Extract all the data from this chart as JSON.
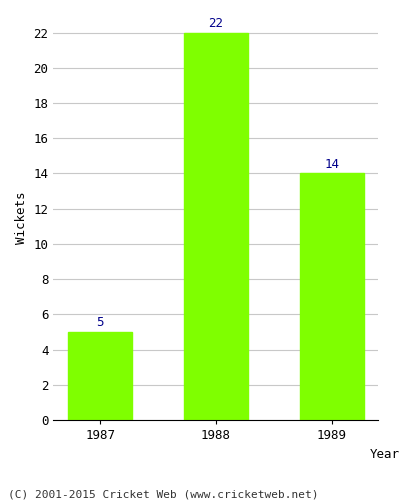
{
  "years": [
    "1987",
    "1988",
    "1989"
  ],
  "values": [
    5,
    22,
    14
  ],
  "bar_color": "#7FFF00",
  "bar_edge_color": "#7FFF00",
  "label_color": "#00008B",
  "ylabel": "Wickets",
  "xlabel": "Year",
  "ylim": [
    0,
    23
  ],
  "yticks": [
    0,
    2,
    4,
    6,
    8,
    10,
    12,
    14,
    16,
    18,
    20,
    22
  ],
  "grid_color": "#c8c8c8",
  "background_color": "#ffffff",
  "figure_color": "#ffffff",
  "label_fontsize": 9,
  "axis_fontsize": 9,
  "tick_fontsize": 9,
  "footer_text": "(C) 2001-2015 Cricket Web (www.cricketweb.net)"
}
